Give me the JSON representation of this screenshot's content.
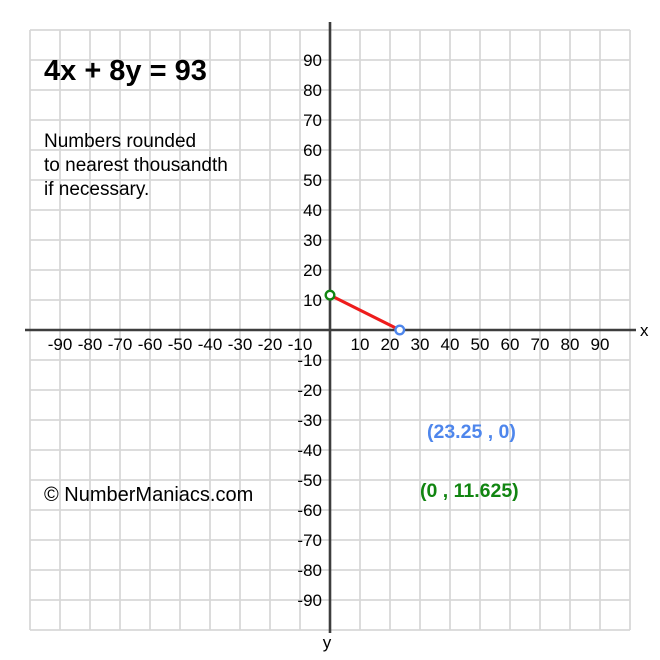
{
  "title": "4x + 8y = 93",
  "note": "Numbers rounded\nto nearest thousandth\nif necessary.",
  "watermark": "© NumberManiacs.com",
  "colors": {
    "line": "#ee1c1c",
    "x_intercept": "#4e86ec",
    "y_intercept": "#118511",
    "grid": "#d8d8d8",
    "axis": "#3d3d3d",
    "tick_text": "#000000",
    "background": "#ffffff"
  },
  "chart_data": {
    "type": "line",
    "title": "4x + 8y = 93",
    "equation": "4x + 8y = 93",
    "segment": {
      "x1": 0,
      "y1": 11.625,
      "x2": 23.25,
      "y2": 0
    },
    "points": [
      {
        "name": "x-intercept",
        "x": 23.25,
        "y": 0,
        "label": "(23.25 , 0)",
        "color": "#4e86ec"
      },
      {
        "name": "y-intercept",
        "x": 0,
        "y": 11.625,
        "label": "(0 , 11.625)",
        "color": "#118511"
      }
    ],
    "axis": {
      "xlabel": "x",
      "ylabel": "y",
      "xlim": [
        -100,
        100
      ],
      "ylim": [
        -100,
        100
      ],
      "grid": true,
      "grid_step": 10,
      "x_ticks": [
        -90,
        -80,
        -70,
        -60,
        -50,
        -40,
        -30,
        -20,
        -10,
        10,
        20,
        30,
        40,
        50,
        60,
        70,
        80,
        90
      ],
      "y_ticks": [
        90,
        80,
        70,
        60,
        50,
        40,
        30,
        20,
        10,
        -10,
        -20,
        -30,
        -40,
        -50,
        -60,
        -70,
        -80,
        -90
      ]
    }
  }
}
